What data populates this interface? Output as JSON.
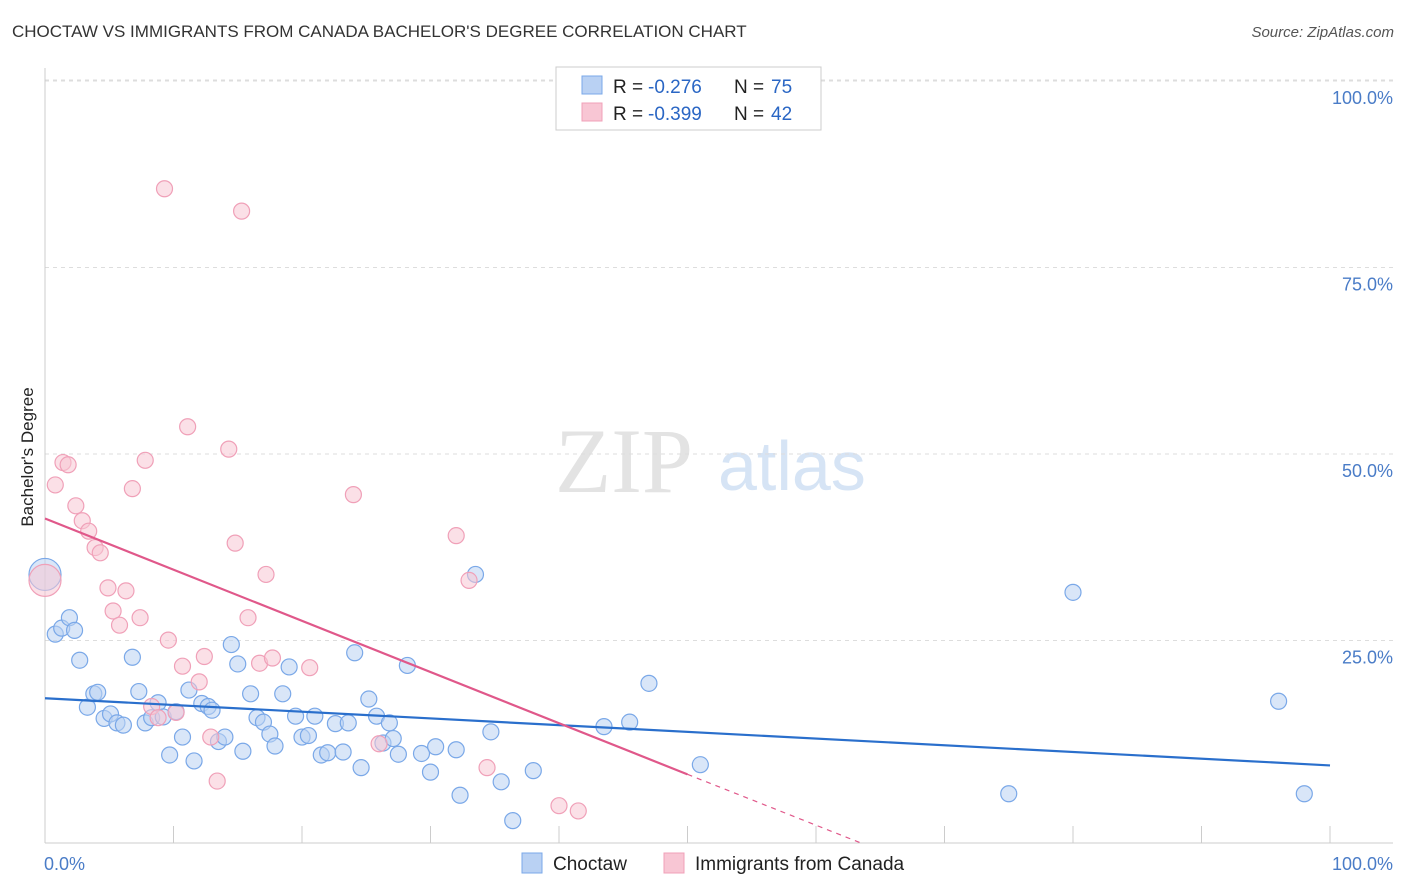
{
  "title": "CHOCTAW VS IMMIGRANTS FROM CANADA BACHELOR'S DEGREE CORRELATION CHART",
  "source": "Source: ZipAtlas.com",
  "watermark": {
    "part1": "ZIP",
    "part2": "atlas"
  },
  "chart_data": {
    "type": "scatter",
    "title": "CHOCTAW VS IMMIGRANTS FROM CANADA BACHELOR'S DEGREE CORRELATION CHART",
    "xlabel": "",
    "ylabel": "Bachelor's Degree",
    "xlim": [
      0,
      100
    ],
    "ylim": [
      0,
      100
    ],
    "x_tick_labels": {
      "left": "0.0%",
      "right": "100.0%"
    },
    "y_ticks": [
      {
        "value": 100,
        "label": "100.0%"
      },
      {
        "value": 75,
        "label": "75.0%"
      },
      {
        "value": 50,
        "label": "50.0%"
      },
      {
        "value": 25,
        "label": "25.0%"
      }
    ],
    "legend": [
      {
        "r_label": "R =",
        "r_value": "-0.276",
        "n_label": "N =",
        "n_value": "75"
      },
      {
        "r_label": "R =",
        "r_value": "-0.399",
        "n_label": "N =",
        "n_value": "42"
      }
    ],
    "series": [
      {
        "name": "Choctaw",
        "color": "#7aa8e8",
        "fill": "#b9d1f3",
        "trend_color": "#2a6fcc",
        "trend": {
          "x0": 0,
          "y0": 19.4,
          "x1": 100,
          "y1": 10.4
        },
        "points": [
          [
            0.0,
            36.0
          ],
          [
            0.8,
            28.0
          ],
          [
            1.3,
            28.8
          ],
          [
            1.9,
            30.2
          ],
          [
            2.3,
            28.5
          ],
          [
            2.7,
            24.5
          ],
          [
            3.3,
            18.2
          ],
          [
            3.8,
            20.0
          ],
          [
            4.1,
            20.2
          ],
          [
            4.6,
            16.7
          ],
          [
            5.1,
            17.3
          ],
          [
            5.6,
            16.1
          ],
          [
            6.1,
            15.8
          ],
          [
            6.8,
            24.9
          ],
          [
            7.3,
            20.3
          ],
          [
            7.8,
            16.1
          ],
          [
            8.3,
            16.8
          ],
          [
            8.8,
            18.8
          ],
          [
            9.2,
            16.9
          ],
          [
            9.7,
            11.8
          ],
          [
            10.2,
            17.6
          ],
          [
            10.7,
            14.2
          ],
          [
            11.2,
            20.5
          ],
          [
            11.6,
            11.0
          ],
          [
            12.2,
            18.7
          ],
          [
            12.7,
            18.3
          ],
          [
            13.0,
            17.8
          ],
          [
            13.5,
            13.6
          ],
          [
            14.0,
            14.2
          ],
          [
            14.5,
            26.6
          ],
          [
            15.0,
            24.0
          ],
          [
            15.4,
            12.3
          ],
          [
            16.0,
            20.0
          ],
          [
            16.5,
            16.8
          ],
          [
            17.0,
            16.2
          ],
          [
            17.5,
            14.6
          ],
          [
            17.9,
            13.0
          ],
          [
            18.5,
            20.0
          ],
          [
            19.0,
            23.6
          ],
          [
            19.5,
            17.0
          ],
          [
            20.0,
            14.2
          ],
          [
            20.5,
            14.4
          ],
          [
            21.0,
            17.0
          ],
          [
            21.5,
            11.8
          ],
          [
            22.0,
            12.1
          ],
          [
            22.6,
            16.0
          ],
          [
            23.2,
            12.2
          ],
          [
            23.6,
            16.1
          ],
          [
            24.1,
            25.5
          ],
          [
            24.6,
            10.1
          ],
          [
            25.2,
            19.3
          ],
          [
            25.8,
            17.0
          ],
          [
            26.3,
            13.4
          ],
          [
            26.8,
            16.1
          ],
          [
            27.1,
            14.0
          ],
          [
            27.5,
            11.9
          ],
          [
            28.2,
            23.8
          ],
          [
            29.3,
            12.0
          ],
          [
            30.0,
            9.5
          ],
          [
            30.4,
            12.9
          ],
          [
            32.0,
            12.5
          ],
          [
            32.3,
            6.4
          ],
          [
            33.5,
            36.0
          ],
          [
            34.7,
            14.9
          ],
          [
            35.5,
            8.2
          ],
          [
            36.4,
            3.0
          ],
          [
            38.0,
            9.7
          ],
          [
            43.5,
            15.6
          ],
          [
            45.5,
            16.2
          ],
          [
            47.0,
            21.4
          ],
          [
            51.0,
            10.5
          ],
          [
            75.0,
            6.6
          ],
          [
            80.0,
            33.6
          ],
          [
            96.0,
            19.0
          ],
          [
            98.0,
            6.6
          ]
        ]
      },
      {
        "name": "Immigrants from Canada",
        "color": "#f0a0b8",
        "fill": "#f8c6d4",
        "trend_color": "#e0588a",
        "trend": {
          "x0": 0,
          "y0": 43.5,
          "x1": 50,
          "y1": 9.2
        },
        "trend_dashed_to": {
          "x": 63.5,
          "y": 0
        },
        "points": [
          [
            0.0,
            35.2
          ],
          [
            0.8,
            48.0
          ],
          [
            1.4,
            51.0
          ],
          [
            1.8,
            50.7
          ],
          [
            2.4,
            45.2
          ],
          [
            2.9,
            43.2
          ],
          [
            3.4,
            41.8
          ],
          [
            3.9,
            39.6
          ],
          [
            4.3,
            38.9
          ],
          [
            4.9,
            34.2
          ],
          [
            5.3,
            31.1
          ],
          [
            5.8,
            29.2
          ],
          [
            6.3,
            33.8
          ],
          [
            6.8,
            47.5
          ],
          [
            7.4,
            30.2
          ],
          [
            7.8,
            51.3
          ],
          [
            8.3,
            18.3
          ],
          [
            8.8,
            16.8
          ],
          [
            9.3,
            87.7
          ],
          [
            9.6,
            27.2
          ],
          [
            10.2,
            17.5
          ],
          [
            10.7,
            23.7
          ],
          [
            11.1,
            55.8
          ],
          [
            12.0,
            21.6
          ],
          [
            12.4,
            25.0
          ],
          [
            12.9,
            14.2
          ],
          [
            13.4,
            8.3
          ],
          [
            14.3,
            52.8
          ],
          [
            14.8,
            40.2
          ],
          [
            15.3,
            84.7
          ],
          [
            15.8,
            30.2
          ],
          [
            16.7,
            24.1
          ],
          [
            17.2,
            36.0
          ],
          [
            17.7,
            24.8
          ],
          [
            20.6,
            23.5
          ],
          [
            24.0,
            46.7
          ],
          [
            26.0,
            13.3
          ],
          [
            32.0,
            41.2
          ],
          [
            33.0,
            35.2
          ],
          [
            34.4,
            10.1
          ],
          [
            40.0,
            5.0
          ],
          [
            41.5,
            4.3
          ]
        ]
      }
    ]
  }
}
